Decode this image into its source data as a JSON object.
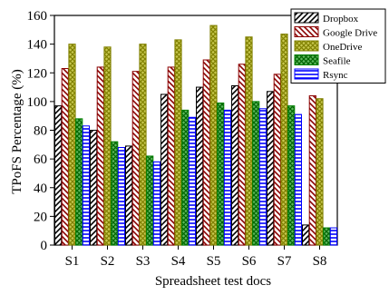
{
  "chart_data": {
    "type": "bar",
    "xlabel": "Spreadsheet test docs",
    "ylabel": "TPoFS Percentage (%)",
    "categories": [
      "S1",
      "S2",
      "S3",
      "S4",
      "S5",
      "S6",
      "S7",
      "S8"
    ],
    "ylim": [
      0,
      160
    ],
    "yticks": [
      0,
      20,
      40,
      60,
      80,
      100,
      120,
      140,
      160
    ],
    "legend_position": "top-right",
    "series": [
      {
        "name": "Dropbox",
        "color": "#000000",
        "pattern": "diag-up",
        "values": [
          97,
          80,
          69,
          105,
          110,
          111,
          107,
          14
        ]
      },
      {
        "name": "Google Drive",
        "color": "#8b0000",
        "pattern": "diag-down",
        "values": [
          123,
          124,
          121,
          124,
          129,
          126,
          119,
          104
        ]
      },
      {
        "name": "OneDrive",
        "color": "#808000",
        "pattern": "cross-diag",
        "values": [
          140,
          138,
          140,
          143,
          153,
          145,
          147,
          102
        ]
      },
      {
        "name": "Seafile",
        "color": "#008000",
        "pattern": "cross-diag",
        "values": [
          88,
          72,
          62,
          94,
          99,
          100,
          97,
          12
        ]
      },
      {
        "name": "Rsync",
        "color": "#0000ff",
        "pattern": "horizontal",
        "values": [
          83,
          68,
          58,
          89,
          94,
          95,
          91,
          12
        ]
      }
    ]
  }
}
